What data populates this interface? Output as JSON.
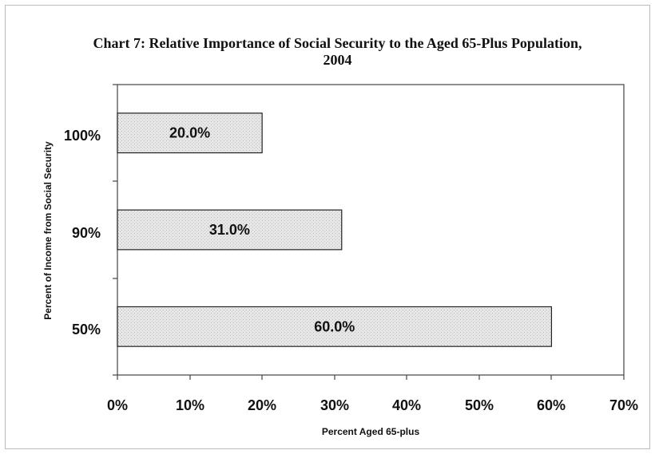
{
  "chart_data": {
    "type": "bar",
    "orientation": "horizontal",
    "title": "Chart 7: Relative Importance of Social Security to the Aged 65-Plus Population, 2004",
    "title_line1": "Chart 7: Relative Importance of Social Security to the Aged 65-Plus Population,",
    "title_line2": "2004",
    "categories": [
      "100%",
      "90%",
      "50%"
    ],
    "values": [
      20.0,
      31.0,
      60.0
    ],
    "value_labels": [
      "20.0%",
      "31.0%",
      "60.0%"
    ],
    "xlabel": "Percent Aged 65-plus",
    "ylabel": "Percent of Income from Social Security",
    "xlim": [
      0,
      70
    ],
    "xticks": [
      0,
      10,
      20,
      30,
      40,
      50,
      60,
      70
    ],
    "xtick_labels": [
      "0%",
      "10%",
      "20%",
      "30%",
      "40%",
      "50%",
      "60%",
      "70%"
    ],
    "grid": false,
    "legend": "none",
    "bar_color": "#e4e4e4",
    "bar_edge_color": "#222222"
  }
}
